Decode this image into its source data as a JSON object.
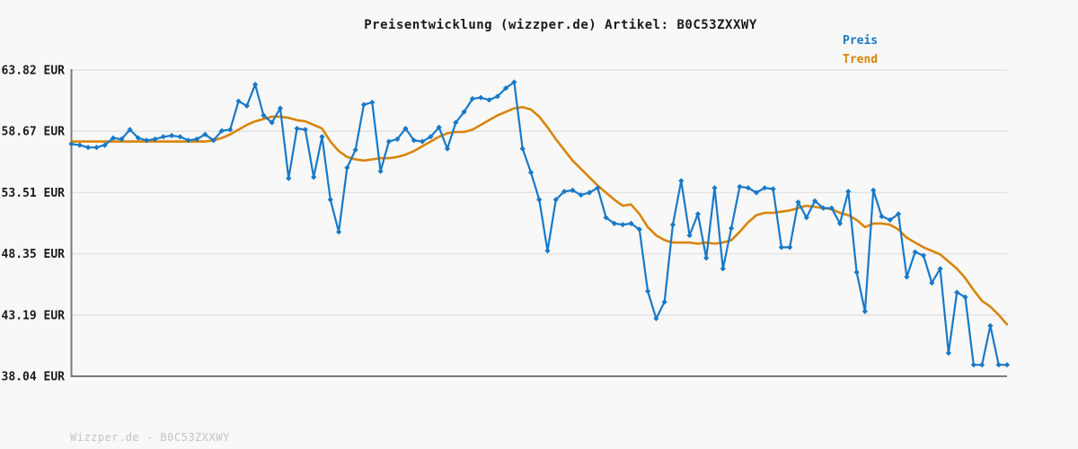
{
  "title": "Preisentwicklung (wizzper.de) Artikel: B0C53ZXXWY",
  "footer": "Wizzper.de - B0C53ZXXWY",
  "legend": [
    {
      "label": "Preis",
      "color": "#1879c8"
    },
    {
      "label": "Trend",
      "color": "#d98408"
    }
  ],
  "colors": {
    "background": "#f8f8f8",
    "grid": "#e2e2e2",
    "axis": "#7a7a7a",
    "tick_label": "#1a1a1a",
    "price_line": "#1879c8",
    "trend_line": "#d98408",
    "watermark": "#c3c3c3"
  },
  "chart_data": {
    "type": "line",
    "title": "Preisentwicklung (wizzper.de) Artikel: B0C53ZXXWY",
    "xlabel": "",
    "ylabel": "",
    "unit": "EUR",
    "grid": true,
    "legend_position": "top-right",
    "x_axis_labels_visible": false,
    "ylim": [
      38.04,
      63.82
    ],
    "y_tick_values": [
      63.82,
      58.67,
      53.51,
      48.35,
      43.19,
      38.04
    ],
    "y_tick_labels": [
      "63.82 EUR",
      "58.67 EUR",
      "53.51 EUR",
      "48.35 EUR",
      "43.19 EUR",
      "38.04 EUR"
    ],
    "series": [
      {
        "name": "Preis",
        "color": "#1879c8",
        "marker": "diamond",
        "values": [
          57.6,
          57.5,
          57.3,
          57.3,
          57.5,
          58.1,
          58.0,
          58.8,
          58.1,
          57.9,
          58.0,
          58.2,
          58.3,
          58.2,
          57.9,
          58.0,
          58.4,
          57.9,
          58.7,
          58.8,
          61.2,
          60.8,
          62.6,
          60.0,
          59.4,
          60.6,
          54.7,
          58.9,
          58.8,
          54.8,
          58.2,
          52.9,
          50.2,
          55.6,
          57.1,
          60.9,
          61.1,
          55.3,
          57.8,
          58.0,
          58.9,
          57.9,
          57.8,
          58.2,
          59.0,
          57.2,
          59.4,
          60.3,
          61.4,
          61.5,
          61.3,
          61.6,
          62.3,
          62.8,
          57.2,
          55.2,
          52.9,
          48.6,
          52.9,
          53.6,
          53.7,
          53.3,
          53.5,
          53.9,
          51.4,
          50.9,
          50.8,
          50.9,
          50.4,
          45.2,
          42.9,
          44.3,
          50.8,
          54.5,
          49.9,
          51.7,
          48.0,
          53.9,
          47.1,
          50.5,
          54.0,
          53.9,
          53.5,
          53.9,
          53.8,
          48.9,
          48.9,
          52.7,
          51.4,
          52.8,
          52.2,
          52.2,
          50.9,
          53.6,
          46.8,
          43.5,
          53.7,
          51.5,
          51.2,
          51.7,
          46.4,
          48.5,
          48.2,
          45.9,
          47.1,
          40.0,
          45.1,
          44.7,
          39.0,
          39.0,
          42.3,
          39.0,
          39.0
        ]
      },
      {
        "name": "Trend",
        "color": "#d98408",
        "marker": "none",
        "values": [
          57.8,
          57.8,
          57.8,
          57.8,
          57.8,
          57.8,
          57.8,
          57.8,
          57.8,
          57.8,
          57.8,
          57.8,
          57.8,
          57.8,
          57.8,
          57.8,
          57.8,
          57.9,
          58.1,
          58.4,
          58.8,
          59.2,
          59.5,
          59.7,
          59.9,
          59.9,
          59.8,
          59.6,
          59.5,
          59.2,
          58.9,
          57.8,
          57.0,
          56.5,
          56.3,
          56.2,
          56.3,
          56.4,
          56.4,
          56.5,
          56.7,
          57.0,
          57.4,
          57.8,
          58.2,
          58.5,
          58.6,
          58.6,
          58.8,
          59.2,
          59.6,
          60.0,
          60.3,
          60.6,
          60.7,
          60.5,
          59.9,
          59.0,
          58.0,
          57.1,
          56.2,
          55.5,
          54.8,
          54.1,
          53.5,
          52.9,
          52.4,
          52.5,
          51.7,
          50.6,
          49.9,
          49.5,
          49.3,
          49.3,
          49.3,
          49.2,
          49.3,
          49.2,
          49.3,
          49.5,
          50.2,
          51.0,
          51.6,
          51.8,
          51.8,
          51.9,
          52.0,
          52.2,
          52.4,
          52.3,
          52.2,
          52.1,
          51.8,
          51.6,
          51.2,
          50.6,
          50.9,
          50.9,
          50.8,
          50.4,
          49.7,
          49.3,
          48.9,
          48.6,
          48.3,
          47.7,
          47.1,
          46.3,
          45.3,
          44.4,
          43.9,
          43.2,
          42.4
        ]
      }
    ]
  }
}
